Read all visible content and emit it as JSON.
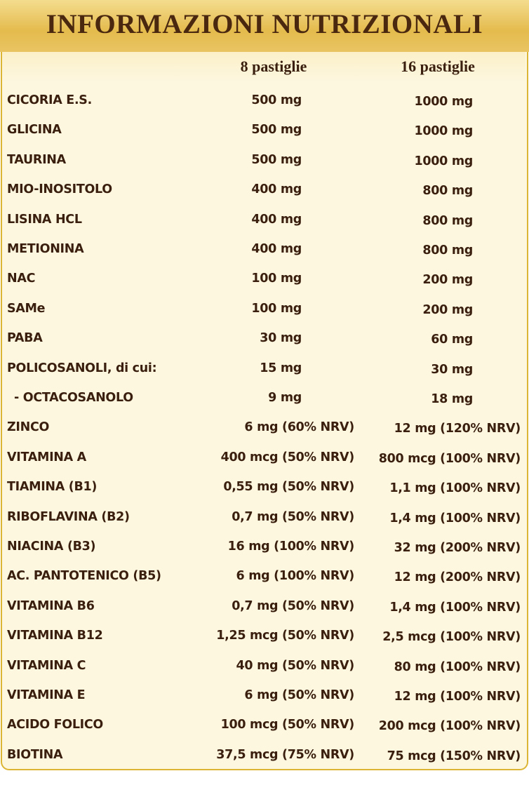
{
  "header": {
    "title": "INFORMAZIONI NUTRIZIONALI"
  },
  "table": {
    "columns": [
      "8 pastiglie",
      "16 pastiglie"
    ],
    "rows": [
      [
        "CICORIA E.S.",
        "500 mg",
        "1000 mg"
      ],
      [
        "GLICINA",
        "500 mg",
        "1000 mg"
      ],
      [
        "TAURINA",
        "500 mg",
        "1000 mg"
      ],
      [
        "MIO-INOSITOLO",
        "400 mg",
        "800 mg"
      ],
      [
        "LISINA HCL",
        "400 mg",
        "800 mg"
      ],
      [
        "METIONINA",
        "400 mg",
        "800 mg"
      ],
      [
        "NAC",
        "100 mg",
        "200 mg"
      ],
      [
        "SAMe",
        "100 mg",
        "200 mg"
      ],
      [
        "PABA",
        "30 mg",
        "60 mg"
      ],
      [
        "POLICOSANOLI, di cui:",
        "15 mg",
        "30 mg"
      ],
      [
        "- OCTACOSANOLO",
        "9 mg",
        "18 mg"
      ],
      [
        "ZINCO",
        "6 mg (60% NRV)",
        "12 mg (120% NRV)"
      ],
      [
        "VITAMINA A",
        "400 mcg (50% NRV)",
        "800 mcg (100% NRV)"
      ],
      [
        "TIAMINA (B1)",
        "0,55 mg (50% NRV)",
        "1,1 mg (100% NRV)"
      ],
      [
        "RIBOFLAVINA (B2)",
        "0,7 mg (50% NRV)",
        "1,4 mg (100% NRV)"
      ],
      [
        "NIACINA (B3)",
        "16 mg (100% NRV)",
        "32 mg (200% NRV)"
      ],
      [
        "AC. PANTOTENICO (B5)",
        "6 mg (100% NRV)",
        "12 mg (200% NRV)"
      ],
      [
        "VITAMINA B6",
        "0,7 mg (50% NRV)",
        "1,4 mg (100% NRV)"
      ],
      [
        "VITAMINA B12",
        "1,25 mcg (50% NRV)",
        "2,5 mcg (100% NRV)"
      ],
      [
        "VITAMINA C",
        "40 mg (50% NRV)",
        "80 mg (100% NRV)"
      ],
      [
        "VITAMINA E",
        "6 mg (50% NRV)",
        "12 mg (100% NRV)"
      ],
      [
        "ACIDO FOLICO",
        "100 mcg (50% NRV)",
        "200 mcg (100% NRV)"
      ],
      [
        "BIOTINA",
        "37,5 mcg (75% NRV)",
        "75 mcg (150% NRV)"
      ]
    ]
  }
}
